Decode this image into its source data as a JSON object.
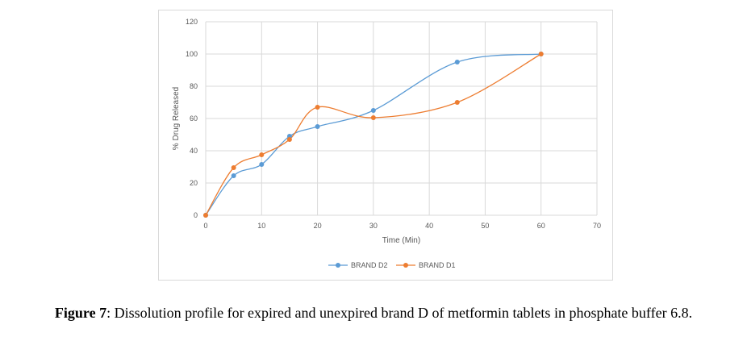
{
  "chart_data": {
    "type": "line",
    "xlabel": "Time (Min)",
    "ylabel": "% Drug Released",
    "xlim": [
      0,
      70
    ],
    "ylim": [
      0,
      120
    ],
    "xticks": [
      0,
      10,
      20,
      30,
      40,
      50,
      60,
      70
    ],
    "yticks": [
      0,
      20,
      40,
      60,
      80,
      100,
      120
    ],
    "grid": true,
    "legend_position": "bottom",
    "series": [
      {
        "name": "BRAND D2",
        "color": "#5b9bd5",
        "x": [
          0,
          5,
          10,
          15,
          20,
          30,
          45,
          60
        ],
        "y": [
          0,
          24.5,
          31.5,
          49,
          55,
          65,
          95,
          100
        ]
      },
      {
        "name": "BRAND D1",
        "color": "#ed7d31",
        "x": [
          0,
          5,
          10,
          15,
          20,
          30,
          45,
          60
        ],
        "y": [
          0,
          29.5,
          37.5,
          47,
          67,
          60.5,
          70,
          100
        ]
      }
    ]
  },
  "caption": {
    "label": "Figure 7",
    "text": ": Dissolution profile for expired and unexpired brand D of metformin tablets in phosphate buffer 6.8."
  }
}
